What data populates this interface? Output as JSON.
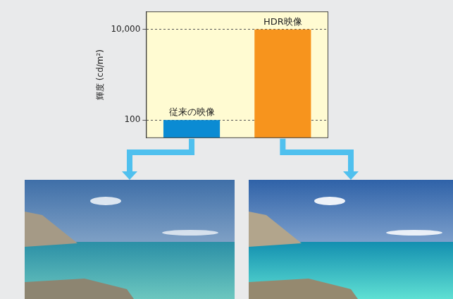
{
  "chart_data": {
    "type": "bar",
    "y_label": "輝度 (cd/m²)",
    "categories": [
      "従来の映像",
      "HDR映像"
    ],
    "values": [
      100,
      10000
    ],
    "colors": [
      "#0b8bd3",
      "#f7941d"
    ],
    "log": "y",
    "ylim": [
      40,
      25000
    ],
    "yticks": [
      100,
      {
        "value": 10000,
        "label": "10,000"
      }
    ],
    "grid": true,
    "tick_labels": "y"
  }
}
